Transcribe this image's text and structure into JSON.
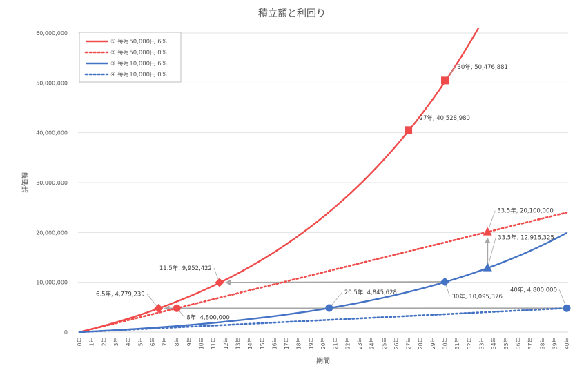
{
  "chart_data": {
    "type": "line",
    "title": "積立額と利回り",
    "xlabel": "期間",
    "ylabel": "評価額",
    "x_unit": "年",
    "x_range": [
      0,
      40
    ],
    "ylim": [
      0,
      60000000
    ],
    "y_ticks": [
      0,
      10000000,
      20000000,
      30000000,
      40000000,
      50000000,
      60000000
    ],
    "y_tick_labels": [
      "0",
      "10,000,000",
      "20,000,000",
      "30,000,000",
      "40,000,000",
      "50,000,000",
      "60,000,000"
    ],
    "x_tick_labels": [
      "0年",
      "1年",
      "2年",
      "3年",
      "4年",
      "5年",
      "6年",
      "7年",
      "8年",
      "9年",
      "10年",
      "11年",
      "12年",
      "13年",
      "14年",
      "15年",
      "16年",
      "17年",
      "18年",
      "19年",
      "20年",
      "21年",
      "22年",
      "23年",
      "24年",
      "25年",
      "26年",
      "27年",
      "28年",
      "29年",
      "30年",
      "31年",
      "32年",
      "33年",
      "34年",
      "35年",
      "36年",
      "37年",
      "38年",
      "39年",
      "40年"
    ],
    "grid": "horizontal",
    "legend_position": "top-left",
    "series": [
      {
        "name": "① 毎月50,000円 6%",
        "monthly": 50000,
        "rate": 0.06,
        "color": "#f04b4b",
        "dash": "solid"
      },
      {
        "name": "② 毎月50,000円 0%",
        "monthly": 50000,
        "rate": 0,
        "color": "#f04b4b",
        "dash": "dotted"
      },
      {
        "name": "③ 毎月10,000円 6%",
        "monthly": 10000,
        "rate": 0.06,
        "color": "#4472c4",
        "dash": "solid"
      },
      {
        "name": "④ 毎月10,000円 0%",
        "monthly": 10000,
        "rate": 0,
        "color": "#4472c4",
        "dash": "dotted"
      }
    ],
    "points": [
      {
        "x": 6.5,
        "y": 4779239,
        "marker": "diamond",
        "color": "#f04b4b",
        "label": "6.5年, 4,779,239"
      },
      {
        "x": 8,
        "y": 4800000,
        "marker": "circle",
        "color": "#f04b4b",
        "label": "8年, 4,800,000"
      },
      {
        "x": 11.5,
        "y": 9952422,
        "marker": "diamond",
        "color": "#f04b4b",
        "label": "11.5年, 9,952,422"
      },
      {
        "x": 27,
        "y": 40528980,
        "marker": "square",
        "color": "#f04b4b",
        "label": "27年, 40,528,980"
      },
      {
        "x": 30,
        "y": 50476881,
        "marker": "square",
        "color": "#f04b4b",
        "label": "30年, 50,476,881"
      },
      {
        "x": 33.5,
        "y": 20100000,
        "marker": "triangle",
        "color": "#f04b4b",
        "label": "33.5年, 20,100,000"
      },
      {
        "x": 20.5,
        "y": 4845628,
        "marker": "circle",
        "color": "#4472c4",
        "label": "20.5年, 4,845,628"
      },
      {
        "x": 30,
        "y": 10095376,
        "marker": "diamond",
        "color": "#4472c4",
        "label": "30年, 10,095,376"
      },
      {
        "x": 33.5,
        "y": 12916325,
        "marker": "triangle",
        "color": "#4472c4",
        "label": "33.5年, 12,916,325"
      },
      {
        "x": 40,
        "y": 4800000,
        "marker": "circle",
        "color": "#4472c4",
        "label": "40年, 4,800,000"
      }
    ],
    "arrows": [
      {
        "from": [
          30,
          10095376
        ],
        "to": [
          11.5,
          9952422
        ]
      },
      {
        "from": [
          40,
          4800000
        ],
        "to": [
          6.5,
          4779239
        ]
      },
      {
        "from": [
          33.5,
          12916325
        ],
        "to": [
          33.5,
          20100000
        ]
      }
    ]
  }
}
